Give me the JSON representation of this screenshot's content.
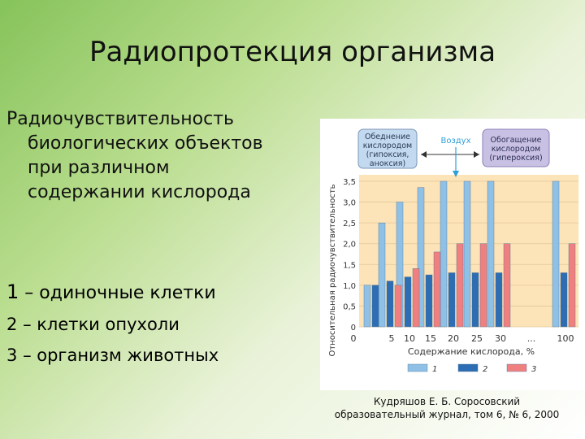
{
  "slide": {
    "title": "Радиопротекция организма",
    "subtitle_lines": [
      "Радиочувствительность",
      "биологических объектов",
      "при различном",
      "содержании кислорода"
    ],
    "legend_lines": [
      {
        "num": "1",
        "text": "– одиночные клетки"
      },
      {
        "num": "2",
        "text": "– клетки опухоли"
      },
      {
        "num": "3",
        "text": "– организм животных"
      }
    ],
    "caption_lines": [
      "Кудряшов Е. Б. Соросовский",
      "образовательный журнал, том 6, № 6, 2000"
    ]
  },
  "chart_data": {
    "type": "bar",
    "ylabel": "Относительная радиочувствительность",
    "xlabel": "Содержание кислорода, %",
    "ylim": [
      0,
      3.5
    ],
    "yticks": [
      "0",
      "0,5",
      "1,0",
      "1,5",
      "2,0",
      "2,5",
      "3,0",
      "3,5"
    ],
    "categories": [
      "0",
      "5",
      "10",
      "15",
      "20",
      "25",
      "30",
      "...",
      "100"
    ],
    "series": [
      {
        "name": "1",
        "color": "#8fc1e6",
        "values": [
          1.0,
          2.5,
          3.0,
          3.35,
          3.5,
          3.5,
          3.5,
          null,
          3.5
        ]
      },
      {
        "name": "2",
        "color": "#2d6db3",
        "values": [
          1.0,
          1.1,
          1.2,
          1.25,
          1.3,
          1.3,
          1.3,
          null,
          1.3
        ]
      },
      {
        "name": "3",
        "color": "#f08080",
        "values": [
          null,
          1.0,
          1.4,
          1.8,
          2.0,
          2.0,
          2.0,
          null,
          2.0
        ]
      }
    ],
    "annotations": {
      "hypoxia": [
        "Обеднение",
        "кислородом",
        "(гипоксия,",
        "аноксия)"
      ],
      "air": "Воздух",
      "hyperoxia": [
        "Обогащение",
        "кислородом",
        "(гипероксия)"
      ]
    },
    "colors": {
      "plot_bg": "#fce3b8",
      "hypoxia_box": "#c3d9ef",
      "hyperoxia_box": "#c9c1e3",
      "air": "#2e9fd8"
    }
  }
}
